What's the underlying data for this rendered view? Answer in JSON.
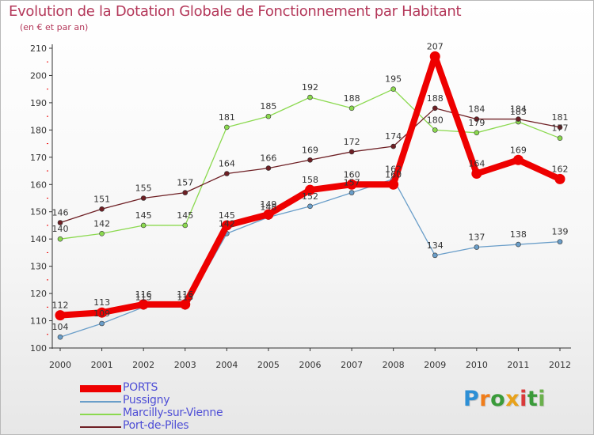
{
  "header": {
    "title": "Evolution de la Dotation Globale de Fonctionnement par Habitant",
    "subtitle": "(en € et par an)"
  },
  "brand": {
    "name": "Proxiti"
  },
  "chart_data": {
    "type": "line",
    "title": "Evolution de la Dotation Globale de Fonctionnement par Habitant",
    "subtitle": "(en € et par an)",
    "xlabel": "",
    "ylabel": "",
    "x": [
      "2000",
      "2001",
      "2002",
      "2003",
      "2004",
      "2005",
      "2006",
      "2007",
      "2008",
      "2009",
      "2010",
      "2011",
      "2012"
    ],
    "ylim": [
      100,
      210
    ],
    "yticks": [
      100,
      110,
      120,
      130,
      140,
      150,
      160,
      170,
      180,
      190,
      200,
      210
    ],
    "grid": false,
    "legend_position": "bottom-left",
    "series": [
      {
        "name": "PORTS",
        "color": "#ee0000",
        "values": [
          112,
          113,
          116,
          116,
          145,
          149,
          158,
          160,
          160,
          207,
          164,
          169,
          162
        ]
      },
      {
        "name": "Pussigny",
        "color": "#6a9ec9",
        "values": [
          104,
          109,
          115,
          115,
          142,
          148,
          152,
          157,
          162,
          134,
          137,
          138,
          139
        ]
      },
      {
        "name": "Marcilly-sur-Vienne",
        "color": "#8bd94f",
        "values": [
          140,
          142,
          145,
          145,
          181,
          185,
          192,
          188,
          195,
          180,
          179,
          183,
          177
        ]
      },
      {
        "name": "Port-de-Piles",
        "color": "#6e1f24",
        "values": [
          146,
          151,
          155,
          157,
          164,
          166,
          169,
          172,
          174,
          188,
          184,
          184,
          181
        ]
      }
    ]
  }
}
